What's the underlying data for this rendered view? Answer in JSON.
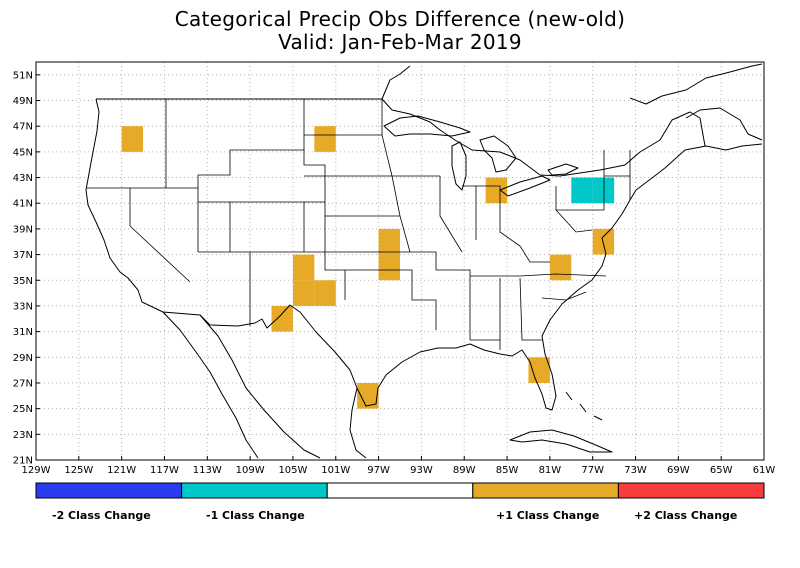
{
  "title": "Categorical Precip Obs Difference (new-old)",
  "subtitle": "Valid: Jan-Feb-Mar 2019",
  "colors": {
    "minus2": "#2b3cf0",
    "minus1": "#00c8c8",
    "zero": "#ffffff",
    "plus1": "#e6aa28",
    "plus2": "#f83c3c",
    "grid": "#b4b4b4",
    "border": "#000000"
  },
  "lon_ticks": [
    "129W",
    "125W",
    "121W",
    "117W",
    "113W",
    "109W",
    "105W",
    "101W",
    "97W",
    "93W",
    "89W",
    "85W",
    "81W",
    "77W",
    "73W",
    "69W",
    "65W",
    "61W"
  ],
  "lat_ticks": [
    "21N",
    "23N",
    "25N",
    "27N",
    "29N",
    "31N",
    "33N",
    "35N",
    "37N",
    "39N",
    "41N",
    "43N",
    "45N",
    "47N",
    "49N",
    "51N"
  ],
  "legend": {
    "labels": [
      "-2 Class Change",
      "-1 Class Change",
      "",
      "+1 Class Change",
      "+2 Class Change"
    ]
  },
  "chart_data": {
    "type": "heatmap",
    "projection": "lat-lon",
    "lon_range": [
      -129,
      -61
    ],
    "lat_range": [
      21,
      52
    ],
    "cell_size_deg": [
      2,
      2
    ],
    "cells": [
      {
        "lon": -120,
        "lat": 46,
        "value": 1
      },
      {
        "lon": -102,
        "lat": 46,
        "value": 1
      },
      {
        "lon": -96,
        "lat": 38,
        "value": 1
      },
      {
        "lon": -96,
        "lat": 36,
        "value": 1
      },
      {
        "lon": -104,
        "lat": 36,
        "value": 1
      },
      {
        "lon": -104,
        "lat": 34,
        "value": 1
      },
      {
        "lon": -102,
        "lat": 34,
        "value": 1
      },
      {
        "lon": -106,
        "lat": 32,
        "value": 1
      },
      {
        "lon": -98,
        "lat": 26,
        "value": 1
      },
      {
        "lon": -86,
        "lat": 42,
        "value": 1
      },
      {
        "lon": -80,
        "lat": 36,
        "value": 1
      },
      {
        "lon": -82,
        "lat": 28,
        "value": 1
      },
      {
        "lon": -76,
        "lat": 38,
        "value": 1
      },
      {
        "lon": -78,
        "lat": 42,
        "value": -1
      },
      {
        "lon": -76,
        "lat": 42,
        "value": -1
      }
    ]
  }
}
